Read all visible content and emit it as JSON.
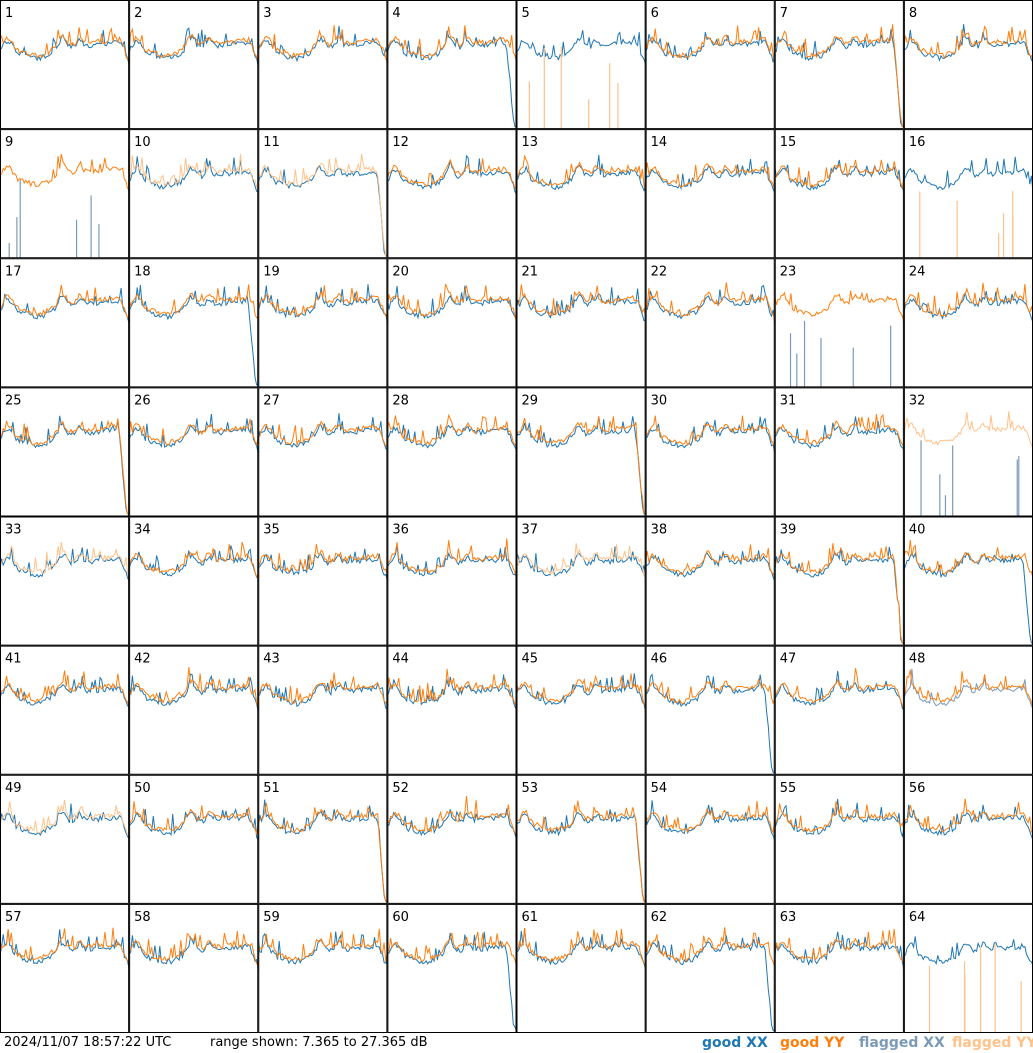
{
  "chart_data": {
    "type": "line",
    "panels": [
      "1",
      "2",
      "3",
      "4",
      "5",
      "6",
      "7",
      "8",
      "9",
      "10",
      "11",
      "12",
      "13",
      "14",
      "15",
      "16",
      "17",
      "18",
      "19",
      "20",
      "21",
      "22",
      "23",
      "24",
      "25",
      "26",
      "27",
      "28",
      "29",
      "30",
      "31",
      "32",
      "33",
      "34",
      "35",
      "36",
      "37",
      "38",
      "39",
      "40",
      "41",
      "42",
      "43",
      "44",
      "45",
      "46",
      "47",
      "48",
      "49",
      "50",
      "51",
      "52",
      "53",
      "54",
      "55",
      "56",
      "57",
      "58",
      "59",
      "60",
      "61",
      "62",
      "63",
      "64"
    ],
    "ylim": [
      7.365,
      27.365
    ],
    "series": [
      {
        "name": "good XX",
        "color": "#1f77b4"
      },
      {
        "name": "good YY",
        "color": "#ff7f0e"
      },
      {
        "name": "flagged XX",
        "color": "#7b9ab8"
      },
      {
        "name": "flagged YY",
        "color": "#ffc28a"
      }
    ],
    "panel_status": {
      "5": {
        "yy": "flagged-spikes"
      },
      "9": {
        "xx": "flagged-spikes"
      },
      "10": {
        "yy": "flagged"
      },
      "11": {
        "yy": "flagged"
      },
      "16": {
        "yy": "flagged-spikes"
      },
      "23": {
        "xx": "flagged-spikes"
      },
      "32": {
        "xx": "flagged-spikes",
        "yy": "flagged"
      },
      "33": {
        "yy": "flagged"
      },
      "37": {
        "yy": "flagged"
      },
      "48": {
        "xx": "flagged"
      },
      "49": {
        "yy": "flagged"
      },
      "64": {
        "yy": "flagged-spikes"
      }
    }
  },
  "footer": {
    "timestamp": "2024/11/07 18:57:22 UTC",
    "range": "range shown: 7.365 to 27.365 dB"
  },
  "legend": {
    "good_xx": "good XX",
    "good_yy": "good YY",
    "flagged_xx": "flagged XX",
    "flagged_yy": "flagged YY"
  }
}
